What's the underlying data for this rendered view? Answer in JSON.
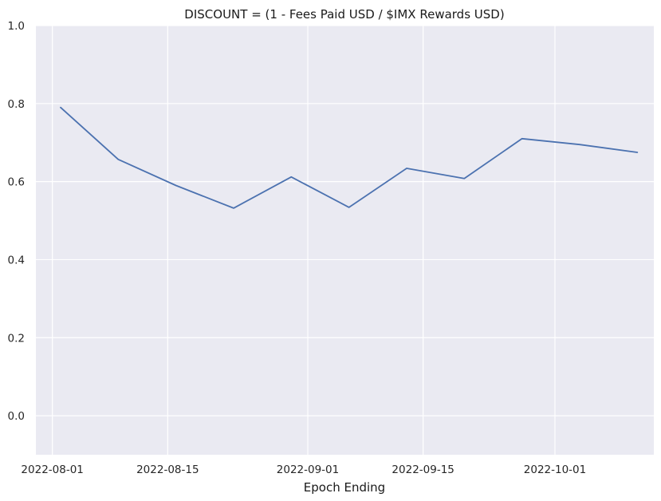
{
  "chart_data": {
    "type": "line",
    "title": "DISCOUNT = (1 - Fees Paid USD / $IMX Rewards USD)",
    "xlabel": "Epoch Ending",
    "ylabel": "",
    "x_type": "date",
    "xlim": [
      "2022-07-30",
      "2022-10-13"
    ],
    "ylim": [
      -0.1,
      1.0
    ],
    "x_ticks": [
      "2022-08-01",
      "2022-08-15",
      "2022-09-01",
      "2022-09-15",
      "2022-10-01"
    ],
    "y_ticks": [
      0.0,
      0.2,
      0.4,
      0.6,
      0.8,
      1.0
    ],
    "y_tick_labels": [
      "0.0",
      "0.2",
      "0.4",
      "0.6",
      "0.8",
      "1.0"
    ],
    "grid": true,
    "series": [
      {
        "color": "#4c72b0",
        "x": [
          "2022-08-02",
          "2022-08-09",
          "2022-08-16",
          "2022-08-23",
          "2022-08-30",
          "2022-09-06",
          "2022-09-13",
          "2022-09-20",
          "2022-09-27",
          "2022-10-04",
          "2022-10-11"
        ],
        "y": [
          0.79,
          0.657,
          0.59,
          0.532,
          0.612,
          0.534,
          0.634,
          0.608,
          0.71,
          0.695,
          0.675
        ]
      }
    ]
  }
}
